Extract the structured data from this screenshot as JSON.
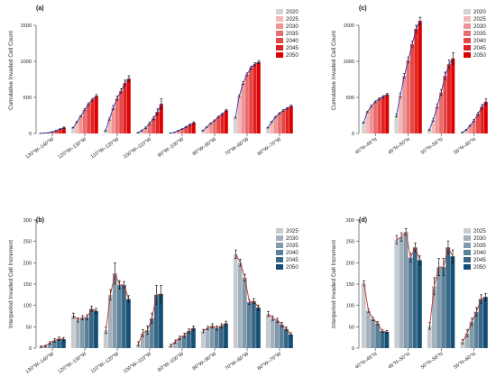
{
  "colors": {
    "red": [
      "#d4d4d4",
      "#f3b8b8",
      "#ef9393",
      "#ea6d6d",
      "#e64848",
      "#e12222",
      "#dd0000"
    ],
    "blue": [
      "#c7ccd1",
      "#a4b2bd",
      "#8099ab",
      "#5b8099",
      "#376786",
      "#134e74"
    ],
    "trend_red": "#c0392b",
    "trend_blue": "#2c3fb0"
  },
  "chart_data": [
    {
      "id": "a",
      "panel_label": "(a)",
      "type": "bar",
      "ylabel": "Cumulative Invaded Cell Count",
      "ylim": [
        0,
        1750
      ],
      "yticks": [
        0,
        500,
        1000,
        1500
      ],
      "legend": [
        "2020",
        "2025",
        "2030",
        "2035",
        "2040",
        "2045",
        "2050"
      ],
      "legend_position": "top-right",
      "trend": "blue",
      "categories": [
        "130°W–140°W",
        "120°W–130°W",
        "110°W–120°W",
        "100°W–110°W",
        "90°W–100°W",
        "80°W–90°W",
        "70°W–80°W",
        "60°W–70°W"
      ],
      "values": [
        [
          2,
          5,
          10,
          22,
          40,
          60,
          80
        ],
        [
          80,
          160,
          240,
          330,
          410,
          470,
          520
        ],
        [
          40,
          200,
          360,
          490,
          590,
          700,
          760
        ],
        [
          10,
          40,
          80,
          140,
          210,
          300,
          410
        ],
        [
          5,
          15,
          40,
          60,
          90,
          120,
          150
        ],
        [
          40,
          90,
          140,
          180,
          230,
          270,
          320
        ],
        [
          220,
          520,
          700,
          820,
          910,
          960,
          990
        ],
        [
          80,
          160,
          230,
          280,
          320,
          350,
          380
        ]
      ],
      "errors": [
        [
          1,
          2,
          3,
          4,
          5,
          6,
          8
        ],
        [
          5,
          8,
          10,
          12,
          14,
          16,
          20
        ],
        [
          8,
          15,
          30,
          30,
          30,
          40,
          40
        ],
        [
          5,
          8,
          10,
          15,
          20,
          40,
          70
        ],
        [
          2,
          3,
          5,
          6,
          8,
          10,
          12
        ],
        [
          5,
          6,
          8,
          8,
          10,
          12,
          14
        ],
        [
          10,
          15,
          20,
          20,
          20,
          20,
          20
        ],
        [
          5,
          6,
          8,
          8,
          10,
          10,
          12
        ]
      ]
    },
    {
      "id": "c",
      "panel_label": "(c)",
      "type": "bar",
      "ylabel": "Cumulative Invaded Cell Count",
      "ylim": [
        0,
        1750
      ],
      "yticks": [
        0,
        500,
        1000,
        1500
      ],
      "legend": [
        "2020",
        "2025",
        "2030",
        "2035",
        "2040",
        "2045",
        "2050"
      ],
      "legend_position": "top-right",
      "trend": "blue",
      "categories": [
        "40°N–45°N",
        "45°N–50°N",
        "50°N–55°N",
        "55°N–60°N"
      ],
      "values": [
        [
          150,
          300,
          380,
          440,
          480,
          510,
          540
        ],
        [
          250,
          530,
          800,
          1020,
          1240,
          1450,
          1560
        ],
        [
          50,
          190,
          380,
          570,
          800,
          960,
          1040
        ],
        [
          15,
          50,
          110,
          180,
          270,
          370,
          440
        ]
      ],
      "errors": [
        [
          8,
          10,
          12,
          12,
          14,
          14,
          16
        ],
        [
          20,
          30,
          30,
          40,
          40,
          50,
          50
        ],
        [
          10,
          20,
          30,
          40,
          50,
          60,
          80
        ],
        [
          5,
          8,
          10,
          15,
          20,
          30,
          40
        ]
      ]
    },
    {
      "id": "b",
      "panel_label": "(b)",
      "type": "bar",
      "ylabel": "Interperiod Invaded Cell Increment",
      "ylim": [
        0,
        300
      ],
      "yticks": [
        0,
        50,
        100,
        150,
        200,
        250,
        300
      ],
      "legend": [
        "2025",
        "2030",
        "2035",
        "2040",
        "2045",
        "2050"
      ],
      "legend_position": "top-right",
      "trend": "red",
      "categories": [
        "130°W–140°W",
        "120°W–130°W",
        "110°W–120°W",
        "100°W–110°W",
        "90°W–100°W",
        "80°W–90°W",
        "70°W–80°W",
        "60°W–70°W"
      ],
      "values": [
        [
          3,
          5,
          12,
          18,
          22,
          21
        ],
        [
          76,
          66,
          71,
          72,
          92,
          87
        ],
        [
          42,
          125,
          175,
          148,
          148,
          115
        ],
        [
          10,
          35,
          42,
          70,
          125,
          127
        ],
        [
          6,
          15,
          24,
          30,
          40,
          47
        ],
        [
          40,
          47,
          52,
          47,
          52,
          58
        ],
        [
          220,
          200,
          165,
          108,
          110,
          95
        ],
        [
          80,
          70,
          65,
          55,
          45,
          32
        ]
      ],
      "errors": [
        [
          2,
          2,
          3,
          4,
          4,
          4
        ],
        [
          6,
          5,
          5,
          6,
          6,
          6
        ],
        [
          8,
          12,
          25,
          10,
          8,
          8
        ],
        [
          5,
          8,
          10,
          12,
          22,
          20
        ],
        [
          3,
          4,
          4,
          5,
          5,
          5
        ],
        [
          4,
          4,
          5,
          5,
          5,
          5
        ],
        [
          10,
          8,
          8,
          6,
          6,
          6
        ],
        [
          6,
          5,
          5,
          5,
          4,
          4
        ]
      ]
    },
    {
      "id": "d",
      "panel_label": "(d)",
      "type": "bar",
      "ylabel": "Interperiod Invaded Cell Increment",
      "ylim": [
        0,
        300
      ],
      "yticks": [
        0,
        50,
        100,
        150,
        200,
        250,
        300
      ],
      "legend": [
        "2025",
        "2030",
        "2035",
        "2040",
        "2045",
        "2050"
      ],
      "legend_position": "top-right",
      "trend": "red",
      "categories": [
        "40°N–45°N",
        "45°N–50°N",
        "50°N–55°N",
        "55°N–60°N"
      ],
      "values": [
        [
          152,
          88,
          68,
          58,
          40,
          38
        ],
        [
          254,
          260,
          272,
          212,
          236,
          206
        ],
        [
          52,
          145,
          190,
          190,
          236,
          215
        ],
        [
          15,
          35,
          62,
          85,
          115,
          120
        ]
      ],
      "errors": [
        [
          6,
          4,
          4,
          4,
          3,
          3
        ],
        [
          10,
          10,
          8,
          10,
          10,
          10
        ],
        [
          8,
          20,
          20,
          20,
          15,
          15
        ],
        [
          5,
          8,
          8,
          10,
          10,
          8
        ]
      ]
    }
  ]
}
